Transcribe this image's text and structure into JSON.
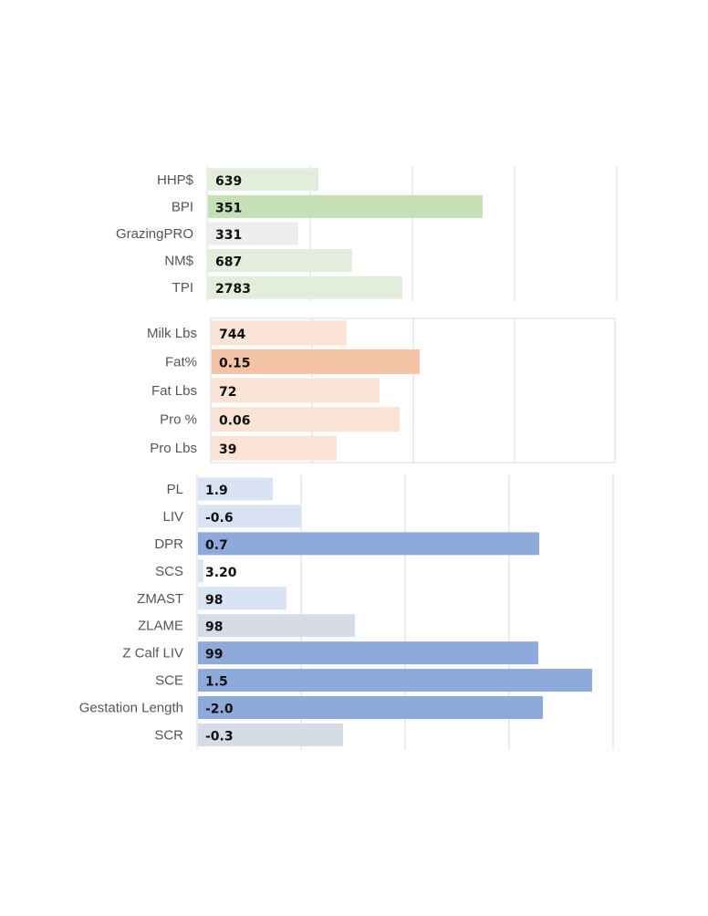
{
  "chart_data": [
    {
      "type": "bar",
      "orientation": "horizontal",
      "title": "",
      "xlabel": "",
      "ylabel": "",
      "grid": true,
      "categories": [
        "HHP$",
        "BPI",
        "GrazingPRO",
        "NM$",
        "TPI"
      ],
      "values": [
        639,
        351,
        331,
        687,
        2783
      ],
      "value_labels": [
        "639",
        "351",
        "331",
        "687",
        "2783"
      ],
      "colors": [
        "#e2eedb",
        "#c5e0b4",
        "#eeeeee",
        "#e2eedb",
        "#e2eedb"
      ]
    },
    {
      "type": "bar",
      "orientation": "horizontal",
      "title": "",
      "xlabel": "",
      "ylabel": "",
      "grid": true,
      "framed": true,
      "categories": [
        "Milk Lbs",
        "Fat%",
        "Fat Lbs",
        "Pro %",
        "Pro Lbs"
      ],
      "values": [
        744,
        0.15,
        72,
        0.06,
        39
      ],
      "value_labels": [
        "744",
        "0.15",
        "72",
        "0.06",
        "39"
      ],
      "colors": [
        "#fbe3d5",
        "#f4c2a4",
        "#fbe3d5",
        "#fbe3d5",
        "#fbe3d5"
      ]
    },
    {
      "type": "bar",
      "orientation": "horizontal",
      "title": "",
      "xlabel": "",
      "ylabel": "",
      "grid": true,
      "categories": [
        "PL",
        "LIV",
        "DPR",
        "SCS",
        "ZMAST",
        "ZLAME",
        "Z Calf LIV",
        "SCE",
        "Gestation Length",
        "SCR"
      ],
      "values": [
        1.9,
        -0.6,
        0.7,
        3.2,
        98,
        98,
        99,
        1.5,
        -2.0,
        -0.3
      ],
      "value_labels": [
        "1.9",
        "-0.6",
        "0.7",
        "3.20",
        "98",
        "98",
        "99",
        "1.5",
        "-2.0",
        "-0.3"
      ],
      "colors": [
        "#dae3f3",
        "#dae3f3",
        "#8eaadb",
        "#dae3f3",
        "#dae3f3",
        "#d6dce5",
        "#8eaadb",
        "#8eaadb",
        "#8eaadb",
        "#d6dce5"
      ]
    }
  ]
}
